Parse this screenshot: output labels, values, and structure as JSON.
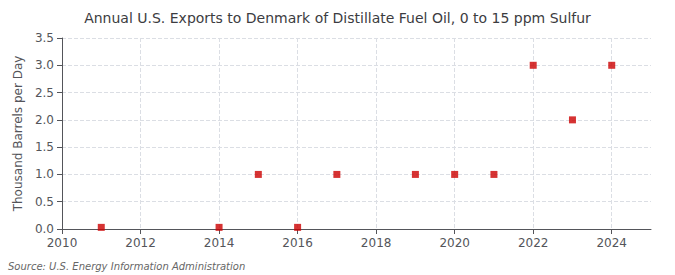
{
  "chart_data": {
    "type": "scatter",
    "title": "Annual U.S. Exports to Denmark of Distillate Fuel Oil, 0 to 15 ppm Sulfur",
    "ylabel": "Thousand Barrels per Day",
    "annotations": [
      "Source: U.S. Energy Information Administration"
    ],
    "x": [
      2011,
      2014,
      2015,
      2016,
      2017,
      2019,
      2020,
      2021,
      2022,
      2023,
      2024
    ],
    "values": [
      0.03,
      0.03,
      1.0,
      0.03,
      1.0,
      1.0,
      1.0,
      1.0,
      3.0,
      2.0,
      3.0
    ],
    "color": "#cc0000",
    "marker": "square",
    "xlim": [
      2010,
      2025
    ],
    "xticks": [
      2010,
      2012,
      2014,
      2016,
      2018,
      2020,
      2022,
      2024
    ],
    "ylim": [
      0.0,
      3.5
    ],
    "yticks": [
      {
        "value": 0.0,
        "label": "0.0"
      },
      0.5,
      {
        "value": 1.0,
        "label": "1.0"
      },
      1.5,
      {
        "value": 2.0,
        "label": "2.0"
      },
      2.5,
      {
        "value": 3.0,
        "label": "3.0"
      },
      3.5
    ],
    "grid": true
  }
}
